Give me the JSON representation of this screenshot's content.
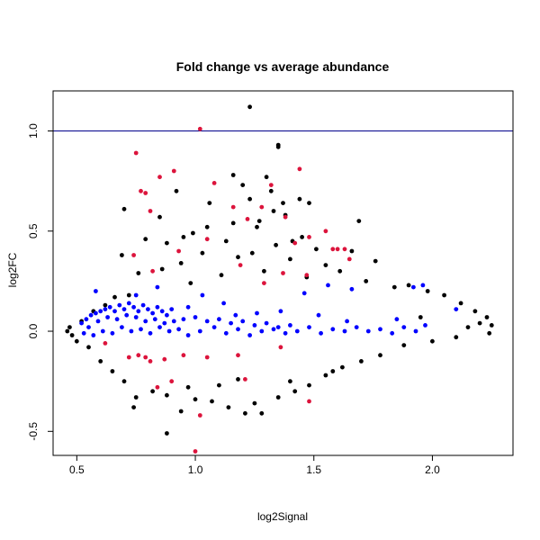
{
  "chart_data": {
    "type": "scatter",
    "title": "Fold change vs average abundance",
    "xlabel": "log2Signal",
    "ylabel": "log2FC",
    "xlim": [
      0.4,
      2.34
    ],
    "ylim": [
      -0.62,
      1.2
    ],
    "x_ticks": [
      0.5,
      1.0,
      1.5,
      2.0
    ],
    "x_tick_labels": [
      "0.5",
      "1.0",
      "1.5",
      "2.0"
    ],
    "y_ticks": [
      -0.5,
      0.0,
      0.5,
      1.0
    ],
    "y_tick_labels": [
      "-0.5",
      "0.0",
      "0.5",
      "1.0"
    ],
    "grid": false,
    "reference_line": {
      "y": 1.0,
      "color": "#00008b"
    },
    "colors": {
      "black": "#000000",
      "blue": "#0000ff",
      "red": "#dc143c"
    },
    "series": [
      {
        "color": "#000000",
        "points": [
          [
            1.23,
            1.12
          ],
          [
            1.35,
            0.93
          ],
          [
            1.35,
            0.92
          ],
          [
            1.3,
            0.77
          ],
          [
            1.16,
            0.78
          ],
          [
            1.2,
            0.73
          ],
          [
            1.32,
            0.7
          ],
          [
            0.92,
            0.7
          ],
          [
            1.44,
            0.66
          ],
          [
            1.48,
            0.64
          ],
          [
            1.37,
            0.64
          ],
          [
            1.23,
            0.66
          ],
          [
            1.06,
            0.64
          ],
          [
            0.7,
            0.61
          ],
          [
            1.33,
            0.6
          ],
          [
            1.38,
            0.58
          ],
          [
            0.85,
            0.57
          ],
          [
            1.27,
            0.55
          ],
          [
            1.69,
            0.55
          ],
          [
            1.16,
            0.54
          ],
          [
            1.26,
            0.52
          ],
          [
            1.05,
            0.52
          ],
          [
            0.99,
            0.49
          ],
          [
            1.45,
            0.47
          ],
          [
            0.95,
            0.47
          ],
          [
            0.79,
            0.46
          ],
          [
            1.41,
            0.45
          ],
          [
            1.13,
            0.45
          ],
          [
            0.88,
            0.44
          ],
          [
            1.34,
            0.43
          ],
          [
            1.51,
            0.41
          ],
          [
            1.66,
            0.4
          ],
          [
            1.24,
            0.39
          ],
          [
            1.03,
            0.39
          ],
          [
            0.69,
            0.38
          ],
          [
            1.18,
            0.37
          ],
          [
            1.4,
            0.36
          ],
          [
            1.76,
            0.35
          ],
          [
            0.94,
            0.34
          ],
          [
            1.55,
            0.33
          ],
          [
            0.86,
            0.31
          ],
          [
            1.61,
            0.3
          ],
          [
            1.29,
            0.3
          ],
          [
            0.76,
            0.29
          ],
          [
            1.11,
            0.28
          ],
          [
            1.47,
            0.27
          ],
          [
            1.72,
            0.25
          ],
          [
            0.98,
            0.24
          ],
          [
            1.9,
            0.23
          ],
          [
            1.84,
            0.22
          ],
          [
            1.98,
            0.2
          ],
          [
            2.05,
            0.18
          ],
          [
            2.12,
            0.14
          ],
          [
            2.18,
            0.1
          ],
          [
            2.23,
            0.07
          ],
          [
            2.2,
            0.04
          ],
          [
            2.25,
            0.03
          ],
          [
            2.24,
            -0.01
          ],
          [
            2.15,
            0.02
          ],
          [
            2.1,
            -0.03
          ],
          [
            2.0,
            -0.05
          ],
          [
            1.95,
            0.07
          ],
          [
            1.88,
            -0.07
          ],
          [
            1.78,
            -0.12
          ],
          [
            1.7,
            -0.15
          ],
          [
            1.62,
            -0.18
          ],
          [
            1.55,
            -0.22
          ],
          [
            1.48,
            -0.27
          ],
          [
            1.42,
            -0.3
          ],
          [
            1.35,
            -0.33
          ],
          [
            1.25,
            -0.36
          ],
          [
            1.28,
            -0.41
          ],
          [
            1.21,
            -0.41
          ],
          [
            1.14,
            -0.38
          ],
          [
            1.07,
            -0.35
          ],
          [
            1.0,
            -0.34
          ],
          [
            0.94,
            -0.4
          ],
          [
            0.88,
            -0.32
          ],
          [
            0.82,
            -0.3
          ],
          [
            0.75,
            -0.33
          ],
          [
            0.74,
            -0.38
          ],
          [
            0.7,
            -0.25
          ],
          [
            0.65,
            -0.2
          ],
          [
            0.6,
            -0.15
          ],
          [
            0.55,
            -0.08
          ],
          [
            0.5,
            -0.05
          ],
          [
            0.46,
            0.0
          ],
          [
            0.47,
            0.02
          ],
          [
            0.48,
            -0.02
          ],
          [
            0.52,
            0.05
          ],
          [
            0.57,
            0.1
          ],
          [
            0.62,
            0.13
          ],
          [
            0.66,
            0.17
          ],
          [
            0.72,
            0.18
          ],
          [
            0.88,
            -0.51
          ],
          [
            1.4,
            -0.25
          ],
          [
            1.58,
            -0.2
          ],
          [
            1.1,
            -0.27
          ],
          [
            0.97,
            -0.28
          ],
          [
            1.18,
            -0.24
          ]
        ]
      },
      {
        "color": "#0000ff",
        "points": [
          [
            0.52,
            0.04
          ],
          [
            0.54,
            0.06
          ],
          [
            0.56,
            0.08
          ],
          [
            0.58,
            0.09
          ],
          [
            0.6,
            0.1
          ],
          [
            0.62,
            0.11
          ],
          [
            0.64,
            0.12
          ],
          [
            0.66,
            0.1
          ],
          [
            0.68,
            0.13
          ],
          [
            0.7,
            0.11
          ],
          [
            0.72,
            0.14
          ],
          [
            0.74,
            0.12
          ],
          [
            0.76,
            0.1
          ],
          [
            0.78,
            0.13
          ],
          [
            0.8,
            0.11
          ],
          [
            0.82,
            0.09
          ],
          [
            0.84,
            0.12
          ],
          [
            0.86,
            0.1
          ],
          [
            0.88,
            0.08
          ],
          [
            0.9,
            0.11
          ],
          [
            0.55,
            0.02
          ],
          [
            0.59,
            0.05
          ],
          [
            0.63,
            0.07
          ],
          [
            0.67,
            0.06
          ],
          [
            0.71,
            0.08
          ],
          [
            0.75,
            0.07
          ],
          [
            0.79,
            0.05
          ],
          [
            0.83,
            0.06
          ],
          [
            0.87,
            0.04
          ],
          [
            0.91,
            0.05
          ],
          [
            0.95,
            0.06
          ],
          [
            1.0,
            0.07
          ],
          [
            1.05,
            0.05
          ],
          [
            1.1,
            0.06
          ],
          [
            1.15,
            0.04
          ],
          [
            1.2,
            0.05
          ],
          [
            1.25,
            0.03
          ],
          [
            1.3,
            0.04
          ],
          [
            1.35,
            0.02
          ],
          [
            1.4,
            0.03
          ],
          [
            0.53,
            -0.01
          ],
          [
            0.57,
            -0.02
          ],
          [
            0.61,
            0.0
          ],
          [
            0.65,
            -0.01
          ],
          [
            0.69,
            0.02
          ],
          [
            0.73,
            0.0
          ],
          [
            0.77,
            0.01
          ],
          [
            0.81,
            -0.01
          ],
          [
            0.85,
            0.02
          ],
          [
            0.89,
            0.0
          ],
          [
            0.93,
            0.01
          ],
          [
            0.97,
            -0.02
          ],
          [
            1.02,
            0.0
          ],
          [
            1.08,
            0.02
          ],
          [
            1.13,
            -0.01
          ],
          [
            1.18,
            0.01
          ],
          [
            1.23,
            -0.02
          ],
          [
            1.28,
            0.0
          ],
          [
            1.33,
            0.01
          ],
          [
            1.38,
            -0.01
          ],
          [
            1.43,
            0.0
          ],
          [
            1.48,
            0.02
          ],
          [
            1.53,
            -0.01
          ],
          [
            1.58,
            0.01
          ],
          [
            1.63,
            0.0
          ],
          [
            1.68,
            0.02
          ],
          [
            1.73,
            0.0
          ],
          [
            1.78,
            0.01
          ],
          [
            1.83,
            -0.01
          ],
          [
            1.88,
            0.02
          ],
          [
            1.93,
            0.0
          ],
          [
            1.97,
            0.03
          ],
          [
            1.92,
            0.22
          ],
          [
            1.96,
            0.23
          ],
          [
            2.1,
            0.11
          ],
          [
            1.66,
            0.21
          ],
          [
            1.56,
            0.23
          ],
          [
            1.36,
            0.1
          ],
          [
            1.17,
            0.08
          ],
          [
            1.46,
            0.19
          ],
          [
            1.03,
            0.18
          ],
          [
            0.84,
            0.22
          ],
          [
            0.58,
            0.2
          ],
          [
            1.64,
            0.05
          ],
          [
            1.26,
            0.09
          ],
          [
            1.12,
            0.14
          ],
          [
            0.97,
            0.12
          ],
          [
            0.75,
            0.18
          ],
          [
            1.52,
            0.08
          ],
          [
            1.85,
            0.06
          ]
        ]
      },
      {
        "color": "#dc143c",
        "points": [
          [
            1.02,
            1.01
          ],
          [
            0.75,
            0.89
          ],
          [
            0.91,
            0.8
          ],
          [
            1.44,
            0.81
          ],
          [
            0.85,
            0.77
          ],
          [
            1.08,
            0.74
          ],
          [
            1.32,
            0.73
          ],
          [
            0.77,
            0.7
          ],
          [
            0.79,
            0.69
          ],
          [
            1.16,
            0.62
          ],
          [
            1.28,
            0.62
          ],
          [
            0.81,
            0.6
          ],
          [
            1.38,
            0.57
          ],
          [
            1.22,
            0.56
          ],
          [
            1.55,
            0.5
          ],
          [
            1.48,
            0.47
          ],
          [
            1.05,
            0.46
          ],
          [
            1.42,
            0.44
          ],
          [
            1.58,
            0.41
          ],
          [
            1.6,
            0.41
          ],
          [
            1.63,
            0.41
          ],
          [
            0.93,
            0.4
          ],
          [
            0.74,
            0.38
          ],
          [
            1.65,
            0.36
          ],
          [
            1.19,
            0.33
          ],
          [
            0.82,
            0.3
          ],
          [
            1.37,
            0.29
          ],
          [
            1.47,
            0.28
          ],
          [
            1.29,
            0.24
          ],
          [
            0.72,
            -0.13
          ],
          [
            0.79,
            -0.13
          ],
          [
            0.81,
            -0.15
          ],
          [
            0.87,
            -0.14
          ],
          [
            0.95,
            -0.12
          ],
          [
            1.05,
            -0.13
          ],
          [
            1.18,
            -0.12
          ],
          [
            1.21,
            -0.24
          ],
          [
            0.9,
            -0.25
          ],
          [
            0.84,
            -0.28
          ],
          [
            1.02,
            -0.42
          ],
          [
            1.0,
            -0.6
          ],
          [
            1.48,
            -0.35
          ],
          [
            0.76,
            -0.12
          ],
          [
            0.62,
            -0.06
          ],
          [
            1.36,
            -0.08
          ]
        ]
      }
    ]
  }
}
